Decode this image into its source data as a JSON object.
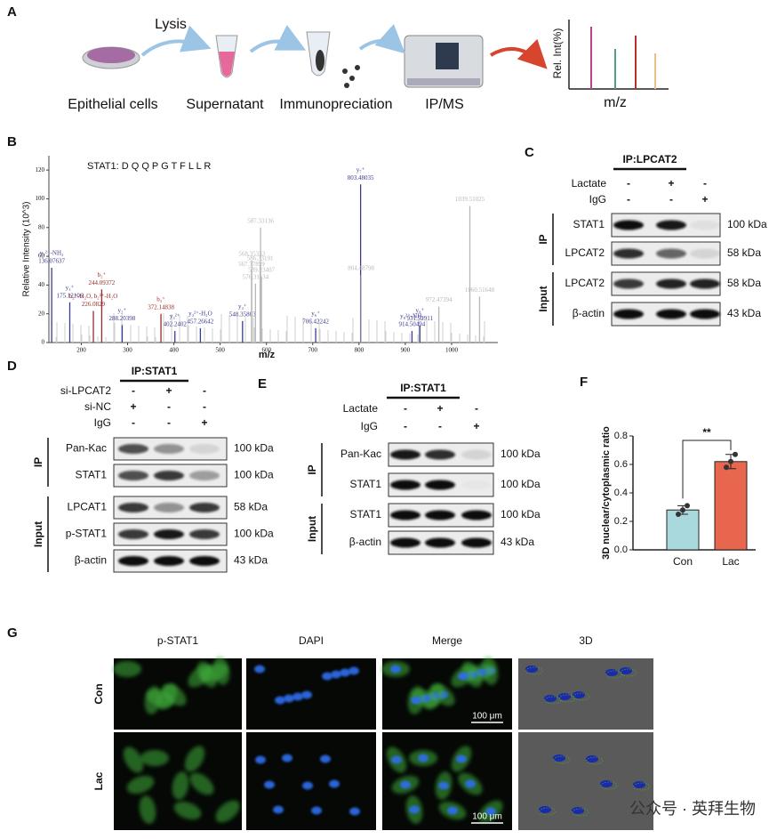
{
  "panel_a": {
    "letter": "A",
    "step": "Lysis",
    "labels": [
      "Epithelial cells",
      "Supernatant",
      "Immunopreciation",
      "IP/MS"
    ],
    "ylabel": "Rel. Int(%)",
    "xlabel": "m/z"
  },
  "chart_data": [
    {
      "type": "stem",
      "letter": "B",
      "title": "STAT1:  D Q Q P G T F L L R",
      "x_label": "m/z",
      "y_label": "Relative Intensity (10^3)",
      "x": [
        136.07637,
        175.12106,
        226.0829,
        244.09372,
        288.20398,
        372.14838,
        402.2402,
        457.26642,
        548.35803,
        706.42242,
        803.48035,
        914.50494,
        931.52911,
        567.77899,
        568.35333,
        576.31134,
        586.33191,
        587.33136,
        589.23407,
        804.48798,
        972.47394,
        1039.51025,
        1060.51648
      ],
      "values": [
        52,
        28,
        22,
        37,
        12,
        20,
        8,
        10,
        15,
        10,
        110,
        8,
        12,
        50,
        57,
        41,
        54,
        80,
        46,
        47,
        25,
        95,
        32
      ],
      "ions": [
        "y₁²⁺-NH₃",
        "y₁⁺",
        "b₂⁺-H₂O, b₂²⁺-H₂O",
        "b₂⁺",
        "y₂⁺",
        "b₃⁺",
        "y₃²⁺",
        "y₃²⁺-H₂O",
        "y₄⁺",
        "y₆⁺",
        "y₇⁺",
        "y₈²⁺-NH₃",
        "y₈⁺",
        null,
        null,
        null,
        null,
        null,
        null,
        null,
        null,
        null,
        null
      ],
      "colors": [
        "#3b3b8f",
        "#3b3b8f",
        "#9b2b2b",
        "#9b2b2b",
        "#3b3b8f",
        "#9b2b2b",
        "#3b3b8f",
        "#3b3b8f",
        "#3b3b8f",
        "#3b3b8f",
        "#3b3b8f",
        "#3b3b8f",
        "#3b3b8f",
        "#b8b8b8",
        "#b8b8b8",
        "#b8b8b8",
        "#b8b8b8",
        "#b8b8b8",
        "#b8b8b8",
        "#b8b8b8",
        "#b8b8b8",
        "#b8b8b8",
        "#b8b8b8"
      ],
      "xlim": [
        130,
        1100
      ],
      "xticks": [
        200,
        300,
        400,
        500,
        600,
        700,
        800,
        900,
        1000
      ],
      "ylim": [
        0,
        130
      ],
      "yticks": [
        0,
        20,
        40,
        60,
        80,
        100,
        120
      ]
    },
    {
      "type": "bar",
      "letter": "F",
      "y_label": "3D nuclear/cytoplasmic ratio",
      "categories": [
        "Con",
        "Lac"
      ],
      "values": [
        0.28,
        0.62
      ],
      "errors": [
        0.03,
        0.05
      ],
      "points": [
        [
          0.25,
          0.28,
          0.31
        ],
        [
          0.58,
          0.62,
          0.67
        ]
      ],
      "colors": [
        "#a9d9dd",
        "#e8664d"
      ],
      "ylim": [
        0,
        0.8
      ],
      "yticks": [
        {
          "value": 0,
          "label": "0.0"
        },
        0.2,
        0.4,
        0.6,
        0.8
      ],
      "annotation": "**"
    }
  ],
  "panel_c": {
    "letter": "C",
    "title": "IP:LPCAT2",
    "conditions": [
      {
        "name": "Lactate",
        "signs": [
          "-",
          "+",
          "-"
        ]
      },
      {
        "name": "IgG",
        "signs": [
          "-",
          "-",
          "+"
        ]
      }
    ],
    "groups": [
      {
        "name": "IP",
        "rows": [
          {
            "label": "STAT1",
            "size": "100 kDa"
          },
          {
            "label": "LPCAT2",
            "size": "58 kDa"
          }
        ]
      },
      {
        "name": "Input",
        "rows": [
          {
            "label": "LPCAT2",
            "size": "58 kDa"
          },
          {
            "label": "β-actin",
            "size": "43 kDa"
          }
        ]
      }
    ]
  },
  "panel_d": {
    "letter": "D",
    "title": "IP:STAT1",
    "conditions": [
      {
        "name": "si-LPCAT2",
        "signs": [
          "-",
          "+",
          "-"
        ]
      },
      {
        "name": "si-NC",
        "signs": [
          "+",
          "-",
          "-"
        ]
      },
      {
        "name": "IgG",
        "signs": [
          "-",
          "-",
          "+"
        ]
      }
    ],
    "groups": [
      {
        "name": "IP",
        "rows": [
          {
            "label": "Pan-Kac",
            "size": "100 kDa"
          },
          {
            "label": "STAT1",
            "size": "100 kDa"
          }
        ]
      },
      {
        "name": "Input",
        "rows": [
          {
            "label": "LPCAT1",
            "size": "58 kDa"
          },
          {
            "label": "p-STAT1",
            "size": "100 kDa"
          },
          {
            "label": "β-actin",
            "size": "43 kDa"
          }
        ]
      }
    ]
  },
  "panel_e": {
    "letter": "E",
    "title": "IP:STAT1",
    "conditions": [
      {
        "name": "Lactate",
        "signs": [
          "-",
          "+",
          "-"
        ]
      },
      {
        "name": "IgG",
        "signs": [
          "-",
          "-",
          "+"
        ]
      }
    ],
    "groups": [
      {
        "name": "IP",
        "rows": [
          {
            "label": "Pan-Kac",
            "size": "100 kDa"
          },
          {
            "label": "STAT1",
            "size": "100 kDa"
          }
        ]
      },
      {
        "name": "Input",
        "rows": [
          {
            "label": "STAT1",
            "size": "100 kDa"
          },
          {
            "label": "β-actin",
            "size": "43 kDa"
          }
        ]
      }
    ]
  },
  "panel_g": {
    "letter": "G",
    "columns": [
      "p-STAT1",
      "DAPI",
      "Merge",
      "3D"
    ],
    "rows": [
      "Con",
      "Lac"
    ],
    "scale_bar": "100 μm"
  },
  "watermark": "公众号 · 英拜生物"
}
